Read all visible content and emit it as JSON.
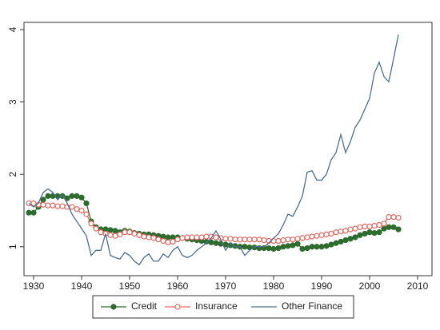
{
  "chart_data": {
    "type": "line",
    "x": [
      1929,
      1930,
      1931,
      1932,
      1933,
      1934,
      1935,
      1936,
      1937,
      1938,
      1939,
      1940,
      1941,
      1942,
      1943,
      1944,
      1945,
      1946,
      1947,
      1948,
      1949,
      1950,
      1951,
      1952,
      1953,
      1954,
      1955,
      1956,
      1957,
      1958,
      1959,
      1960,
      1961,
      1962,
      1963,
      1964,
      1965,
      1966,
      1967,
      1968,
      1969,
      1970,
      1971,
      1972,
      1973,
      1974,
      1975,
      1976,
      1977,
      1978,
      1979,
      1980,
      1981,
      1982,
      1983,
      1984,
      1985,
      1986,
      1987,
      1988,
      1989,
      1990,
      1991,
      1992,
      1993,
      1994,
      1995,
      1996,
      1997,
      1998,
      1999,
      2000,
      2001,
      2002,
      2003,
      2004,
      2005,
      2006
    ],
    "series": [
      {
        "name": "Credit",
        "color": "#2e6b2e",
        "marker": "filled",
        "values": [
          1.47,
          1.47,
          1.55,
          1.65,
          1.7,
          1.7,
          1.7,
          1.7,
          1.67,
          1.7,
          1.7,
          1.68,
          1.6,
          1.35,
          1.27,
          1.24,
          1.24,
          1.23,
          1.22,
          1.2,
          1.22,
          1.21,
          1.19,
          1.18,
          1.17,
          1.17,
          1.16,
          1.15,
          1.14,
          1.13,
          1.13,
          1.13,
          1.12,
          1.11,
          1.1,
          1.09,
          1.08,
          1.07,
          1.06,
          1.05,
          1.04,
          1.03,
          1.02,
          1.01,
          1.0,
          1.0,
          0.99,
          0.99,
          0.98,
          0.98,
          0.98,
          0.97,
          0.98,
          1.0,
          1.01,
          1.02,
          1.04,
          0.97,
          0.98,
          1.0,
          1.0,
          1.0,
          1.01,
          1.03,
          1.05,
          1.07,
          1.09,
          1.11,
          1.13,
          1.16,
          1.18,
          1.2,
          1.19,
          1.2,
          1.25,
          1.27,
          1.27,
          1.24
        ]
      },
      {
        "name": "Insurance",
        "color": "#e06a62",
        "marker": "hollow",
        "values": [
          1.6,
          1.6,
          1.58,
          1.58,
          1.57,
          1.57,
          1.56,
          1.56,
          1.55,
          1.55,
          1.52,
          1.5,
          1.45,
          1.32,
          1.25,
          1.2,
          1.18,
          1.16,
          1.15,
          1.17,
          1.2,
          1.2,
          1.18,
          1.16,
          1.14,
          1.13,
          1.12,
          1.1,
          1.08,
          1.06,
          1.07,
          1.1,
          1.12,
          1.13,
          1.13,
          1.13,
          1.13,
          1.14,
          1.14,
          1.13,
          1.12,
          1.11,
          1.11,
          1.1,
          1.1,
          1.1,
          1.1,
          1.1,
          1.1,
          1.09,
          1.08,
          1.08,
          1.08,
          1.09,
          1.1,
          1.1,
          1.11,
          1.12,
          1.13,
          1.14,
          1.15,
          1.16,
          1.17,
          1.18,
          1.2,
          1.21,
          1.22,
          1.24,
          1.25,
          1.27,
          1.28,
          1.28,
          1.29,
          1.3,
          1.32,
          1.41,
          1.41,
          1.4
        ]
      },
      {
        "name": "Other Finance",
        "color": "#4c6f8e",
        "marker": "none",
        "values": [
          1.6,
          1.55,
          1.6,
          1.75,
          1.8,
          1.75,
          1.65,
          1.72,
          1.6,
          1.45,
          1.35,
          1.25,
          1.15,
          0.88,
          0.95,
          0.95,
          1.18,
          0.88,
          0.85,
          0.83,
          0.92,
          0.88,
          0.8,
          0.75,
          0.85,
          0.9,
          0.8,
          0.8,
          0.9,
          0.85,
          0.95,
          1.0,
          0.88,
          0.85,
          0.88,
          0.95,
          1.0,
          1.05,
          1.12,
          1.22,
          1.1,
          0.95,
          1.05,
          1.0,
          1.0,
          0.88,
          0.95,
          1.0,
          1.0,
          1.0,
          1.05,
          1.12,
          1.18,
          1.3,
          1.45,
          1.42,
          1.55,
          1.7,
          2.03,
          2.05,
          1.92,
          1.92,
          2.0,
          2.2,
          2.3,
          2.55,
          2.3,
          2.45,
          2.65,
          2.75,
          2.9,
          3.05,
          3.4,
          3.55,
          3.35,
          3.28,
          3.6,
          3.93
        ]
      }
    ],
    "xlim": [
      1928,
      2013
    ],
    "xticks": [
      1930,
      1940,
      1950,
      1960,
      1970,
      1980,
      1990,
      2000,
      2010
    ],
    "ylim": [
      0.6,
      4.1
    ],
    "yticks": [
      1,
      2,
      3,
      4
    ],
    "legend": "bottom"
  }
}
